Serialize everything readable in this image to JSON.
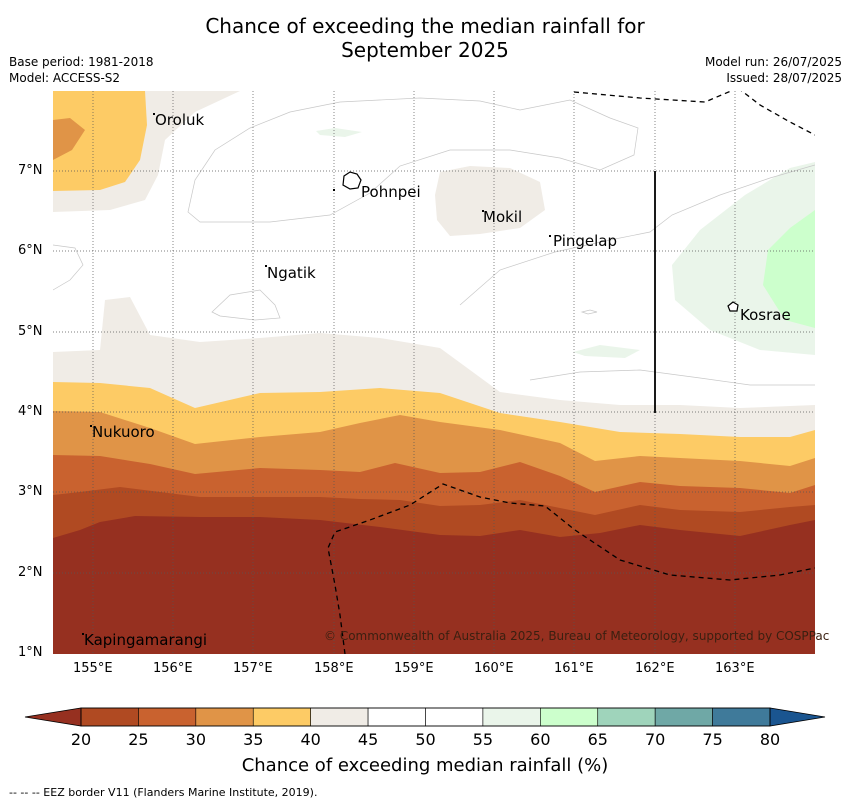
{
  "title": {
    "line1": "Chance of exceeding the median rainfall for",
    "line2": "September 2025"
  },
  "meta": {
    "base_period": "Base period: 1981-2018",
    "model": "Model: ACCESS-S2",
    "model_run": "Model run: 26/07/2025",
    "issued": "Issued: 28/07/2025"
  },
  "axes": {
    "lon_ticks": [
      "155°E",
      "156°E",
      "157°E",
      "158°E",
      "159°E",
      "160°E",
      "161°E",
      "162°E",
      "163°E"
    ],
    "lat_ticks": [
      "7°N",
      "6°N",
      "5°N",
      "4°N",
      "3°N",
      "2°N",
      "1°N"
    ]
  },
  "places": [
    {
      "name": "Oroluk"
    },
    {
      "name": "Pohnpei"
    },
    {
      "name": "Mokil"
    },
    {
      "name": "Pingelap"
    },
    {
      "name": "Ngatik"
    },
    {
      "name": "Kosrae"
    },
    {
      "name": "Nukuoro"
    },
    {
      "name": "Kapingamarangi"
    }
  ],
  "copyright": "© Commonwealth of Australia 2025, Bureau of Meteorology, supported by COSPPac",
  "colorbar": {
    "title": "Chance of exceeding median rainfall (%)",
    "ticks": [
      "20",
      "25",
      "30",
      "35",
      "40",
      "45",
      "50",
      "55",
      "60",
      "65",
      "70",
      "75",
      "80"
    ],
    "colors": [
      "#b04a22",
      "#c9622f",
      "#e09447",
      "#fdcb65",
      "#f0ece6",
      "#ffffff",
      "#ffffff",
      "#eaf5ea",
      "#ccffcc",
      "#9fd4bb",
      "#6fa8a6",
      "#3f7a9a"
    ],
    "under_color": "#963020",
    "over_color": "#1a5590"
  },
  "footnote": "--  --  -- EEZ border V11 (Flanders Marine Institute, 2019)."
}
